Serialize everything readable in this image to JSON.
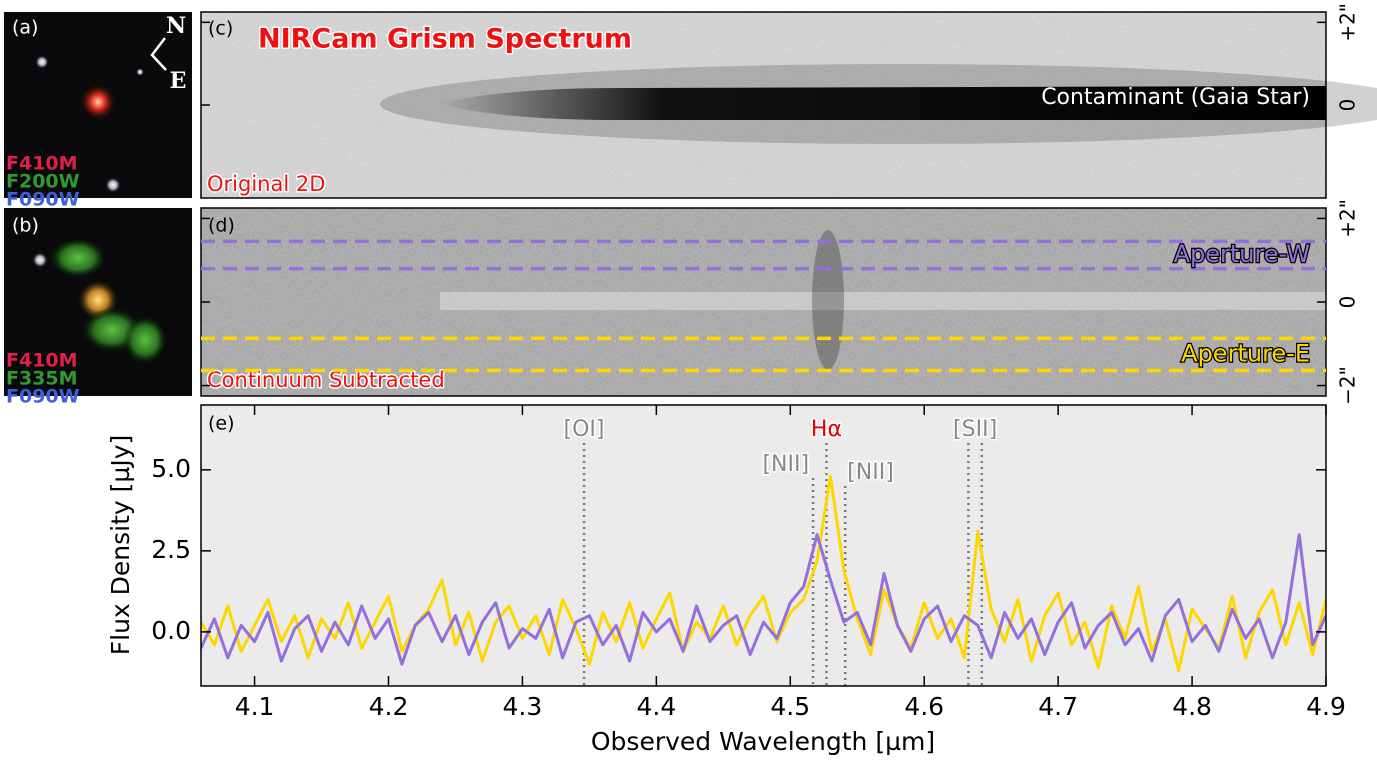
{
  "panels": {
    "a": {
      "label": "(a)",
      "compass": [
        "N",
        "E"
      ],
      "filters": [
        {
          "name": "F410M",
          "color": "#e0204a"
        },
        {
          "name": "F200W",
          "color": "#2f9a2f"
        },
        {
          "name": "F090W",
          "color": "#3f5fd6"
        }
      ]
    },
    "b": {
      "label": "(b)",
      "filters": [
        {
          "name": "F410M",
          "color": "#e0204a"
        },
        {
          "name": "F335M",
          "color": "#2f9a2f"
        },
        {
          "name": "F090W",
          "color": "#3f5fd6"
        }
      ]
    },
    "c": {
      "label": "(c)",
      "title": "NIRCam Grism Spectrum",
      "caption": "Original 2D",
      "annotation": "Contaminant (Gaia Star)",
      "ylim": [
        -2.25,
        2.25
      ],
      "yticks": [
        {
          "value": 2,
          "label": "+2\""
        },
        0
      ]
    },
    "d": {
      "label": "(d)",
      "caption": "Continuum Subtracted",
      "ylim": [
        -2.25,
        2.25
      ],
      "yticks": [
        {
          "value": 2,
          "label": "+2\""
        },
        0,
        {
          "value": -2,
          "label": "−2\""
        }
      ]
    }
  },
  "chart_data": {
    "type": "line",
    "panel_label": "(e)",
    "xlabel": "Observed Wavelength [µm]",
    "ylabel": "Flux Density [µJy]",
    "xlim": [
      4.06,
      4.9
    ],
    "ylim": [
      -1.67,
      7.0
    ],
    "xticks": [
      4.1,
      4.2,
      4.3,
      4.4,
      4.5,
      4.6,
      4.7,
      4.8,
      4.9
    ],
    "yticks": [
      {
        "value": 0,
        "label": "0.0"
      },
      2.5,
      {
        "value": 5,
        "label": "5.0"
      }
    ],
    "lines": [
      {
        "label": "[OI]",
        "x": [
          4.346
        ]
      },
      {
        "label": "Hα",
        "x": [
          4.527
        ],
        "color": "#e00000"
      },
      {
        "label": "[NII]",
        "x": [
          4.517
        ]
      },
      {
        "label": "[NII]",
        "x": [
          4.541
        ]
      },
      {
        "label": "[SII]",
        "x": [
          4.633,
          4.643
        ]
      }
    ],
    "x": [
      4.06,
      4.07,
      4.08,
      4.09,
      4.1,
      4.11,
      4.12,
      4.13,
      4.14,
      4.15,
      4.16,
      4.17,
      4.18,
      4.19,
      4.2,
      4.21,
      4.22,
      4.23,
      4.24,
      4.25,
      4.26,
      4.27,
      4.28,
      4.29,
      4.3,
      4.31,
      4.32,
      4.33,
      4.34,
      4.35,
      4.36,
      4.37,
      4.38,
      4.39,
      4.4,
      4.41,
      4.42,
      4.43,
      4.44,
      4.45,
      4.46,
      4.47,
      4.48,
      4.49,
      4.5,
      4.51,
      4.52,
      4.53,
      4.54,
      4.55,
      4.56,
      4.57,
      4.58,
      4.59,
      4.6,
      4.61,
      4.62,
      4.63,
      4.64,
      4.65,
      4.66,
      4.67,
      4.68,
      4.69,
      4.7,
      4.71,
      4.72,
      4.73,
      4.74,
      4.75,
      4.76,
      4.77,
      4.78,
      4.79,
      4.8,
      4.81,
      4.82,
      4.83,
      4.84,
      4.85,
      4.86,
      4.87,
      4.88,
      4.89,
      4.9
    ],
    "series": [
      {
        "name": "Aperture-E",
        "color": "#ffd700",
        "aperture": [
          -1.64,
          -0.87
        ],
        "values": [
          0.3,
          -0.4,
          0.8,
          -0.6,
          0.2,
          1.0,
          -0.3,
          0.5,
          -0.8,
          0.4,
          -0.2,
          0.9,
          -0.5,
          0.3,
          1.1,
          -0.6,
          0.2,
          0.7,
          1.6,
          -0.4,
          0.6,
          -0.9,
          0.3,
          0.8,
          -0.2,
          0.5,
          -0.7,
          1.0,
          0.1,
          -1.0,
          0.6,
          -0.3,
          0.9,
          -0.5,
          0.4,
          1.2,
          -0.6,
          0.3,
          -0.2,
          0.8,
          -0.4,
          0.5,
          1.1,
          -0.3,
          0.6,
          1.0,
          2.2,
          4.8,
          1.9,
          0.4,
          -0.7,
          1.3,
          0.2,
          -0.5,
          0.9,
          -0.2,
          0.4,
          -0.8,
          3.1,
          0.7,
          -0.3,
          1.0,
          -0.9,
          0.5,
          1.2,
          -0.4,
          0.3,
          -1.1,
          0.8,
          -0.2,
          1.4,
          -0.6,
          0.4,
          -1.2,
          0.7,
          0.1,
          -0.5,
          1.1,
          -0.8,
          0.6,
          1.3,
          -0.4,
          0.9,
          -0.7,
          1.0
        ]
      },
      {
        "name": "Aperture-W",
        "color": "#9370db",
        "aperture": [
          0.8,
          1.45
        ],
        "values": [
          -0.5,
          0.4,
          -0.8,
          0.2,
          -0.3,
          0.6,
          -0.9,
          0.1,
          0.5,
          -0.6,
          0.3,
          -0.4,
          0.8,
          -0.2,
          0.4,
          -1.0,
          0.2,
          0.6,
          -0.3,
          0.5,
          -0.7,
          0.3,
          0.9,
          -0.5,
          0.1,
          -0.2,
          0.7,
          -0.8,
          0.3,
          0.5,
          -0.4,
          0.2,
          -0.9,
          0.6,
          0.0,
          0.4,
          -0.6,
          0.8,
          -0.3,
          0.2,
          0.5,
          -0.7,
          0.3,
          -0.2,
          0.9,
          1.4,
          3.0,
          1.6,
          0.3,
          0.6,
          -0.4,
          1.8,
          0.2,
          -0.6,
          0.4,
          0.8,
          -0.3,
          0.5,
          0.2,
          -0.8,
          0.6,
          -0.2,
          0.4,
          -0.7,
          0.3,
          0.9,
          -0.5,
          0.2,
          0.6,
          -0.4,
          0.1,
          -0.9,
          0.5,
          1.0,
          -0.3,
          0.2,
          -0.6,
          0.7,
          -0.2,
          0.4,
          -0.8,
          0.3,
          3.0,
          -0.4,
          0.5
        ]
      }
    ]
  }
}
